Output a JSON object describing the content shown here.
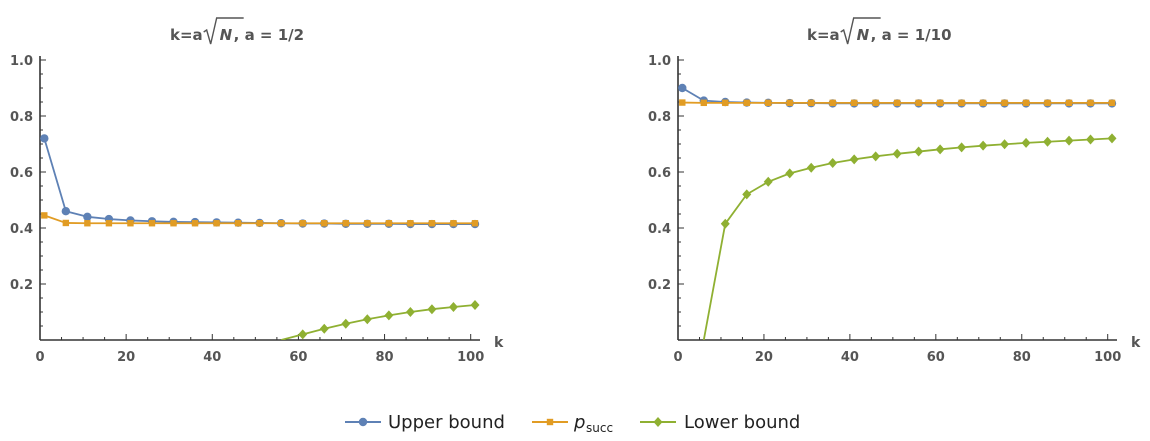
{
  "chart_data": [
    {
      "type": "line",
      "title_prefix": "k=a",
      "title_radicand": "N",
      "title_suffix": " , a = 1/2",
      "xlabel": "k",
      "ylabel": "",
      "xlim": [
        0,
        101
      ],
      "ylim": [
        0,
        1.0
      ],
      "xticks": [
        0,
        20,
        40,
        60,
        80,
        100
      ],
      "yticks": [
        0.2,
        0.4,
        0.6,
        0.8,
        1.0
      ],
      "x": [
        1,
        6,
        11,
        16,
        21,
        26,
        31,
        36,
        41,
        46,
        51,
        56,
        61,
        66,
        71,
        76,
        81,
        86,
        91,
        96,
        101
      ],
      "grid": false,
      "series": [
        {
          "name": "Upper bound",
          "values": [
            0.72,
            0.46,
            0.44,
            0.432,
            0.427,
            0.424,
            0.422,
            0.421,
            0.42,
            0.419,
            0.418,
            0.417,
            0.416,
            0.416,
            0.415,
            0.415,
            0.415,
            0.414,
            0.414,
            0.414,
            0.414
          ]
        },
        {
          "name": "p_succ",
          "values": [
            0.445,
            0.418,
            0.417,
            0.417,
            0.417,
            0.417,
            0.417,
            0.417,
            0.417,
            0.417,
            0.417,
            0.417,
            0.417,
            0.417,
            0.417,
            0.417,
            0.417,
            0.417,
            0.417,
            0.417,
            0.417
          ]
        },
        {
          "name": "Lower bound",
          "curve_start": [
            56,
            0.0
          ],
          "values": [
            null,
            null,
            null,
            null,
            null,
            null,
            null,
            null,
            null,
            null,
            null,
            null,
            0.02,
            0.04,
            0.058,
            0.074,
            0.088,
            0.1,
            0.11,
            0.118,
            0.125
          ]
        }
      ]
    },
    {
      "type": "line",
      "title_prefix": "k=a",
      "title_radicand": "N",
      "title_suffix": " , a = 1/10",
      "xlabel": "k",
      "ylabel": "",
      "xlim": [
        0,
        101
      ],
      "ylim": [
        0,
        1.0
      ],
      "xticks": [
        0,
        20,
        40,
        60,
        80,
        100
      ],
      "yticks": [
        0.2,
        0.4,
        0.6,
        0.8,
        1.0
      ],
      "x": [
        1,
        6,
        11,
        16,
        21,
        26,
        31,
        36,
        41,
        46,
        51,
        56,
        61,
        66,
        71,
        76,
        81,
        86,
        91,
        96,
        101
      ],
      "grid": false,
      "series": [
        {
          "name": "Upper bound",
          "values": [
            0.9,
            0.855,
            0.85,
            0.848,
            0.847,
            0.846,
            0.846,
            0.845,
            0.845,
            0.845,
            0.845,
            0.845,
            0.845,
            0.845,
            0.845,
            0.845,
            0.845,
            0.845,
            0.845,
            0.845,
            0.845
          ]
        },
        {
          "name": "p_succ",
          "values": [
            0.848,
            0.847,
            0.847,
            0.847,
            0.847,
            0.847,
            0.847,
            0.847,
            0.847,
            0.847,
            0.847,
            0.847,
            0.847,
            0.847,
            0.847,
            0.847,
            0.847,
            0.847,
            0.847,
            0.847,
            0.847
          ]
        },
        {
          "name": "Lower bound",
          "curve_start": [
            6,
            0.0
          ],
          "values": [
            null,
            null,
            0.415,
            0.52,
            0.565,
            0.595,
            0.615,
            0.632,
            0.645,
            0.656,
            0.665,
            0.673,
            0.681,
            0.688,
            0.694,
            0.699,
            0.704,
            0.708,
            0.712,
            0.716,
            0.72
          ]
        }
      ]
    }
  ],
  "legend": {
    "placement": "bottom-center",
    "items": [
      {
        "label": "Upper bound",
        "label_main": "",
        "label_sub": "",
        "color": "#5E81B5",
        "marker": "circle"
      },
      {
        "label": "",
        "label_main": "p",
        "label_sub": "succ",
        "color": "#E19C24",
        "marker": "square"
      },
      {
        "label": "Lower bound",
        "label_main": "",
        "label_sub": "",
        "color": "#8FB032",
        "marker": "diamond"
      }
    ]
  },
  "colors": {
    "upper": "#5E81B5",
    "psucc": "#E19C24",
    "lower": "#8FB032",
    "axis": "#333333",
    "text": "#555555"
  }
}
